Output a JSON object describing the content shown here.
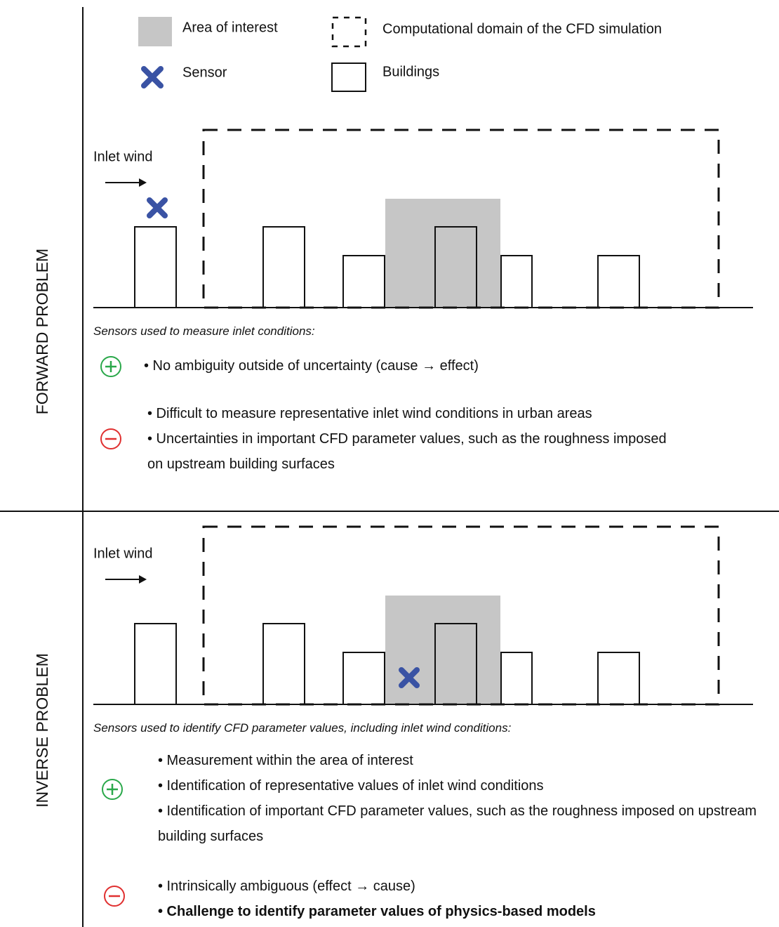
{
  "legend": {
    "area_of_interest": "Area of interest",
    "computational_domain": "Computational domain of the CFD simulation",
    "sensor": "Sensor",
    "buildings": "Buildings"
  },
  "panels": [
    {
      "label": "FORWARD PROBLEM",
      "inlet_wind": "Inlet wind",
      "caption": "Sensors used to measure inlet conditions:",
      "advantages": [
        "• No ambiguity outside of uncertainty (cause → effect)"
      ],
      "disadvantages": [
        "• Difficult to measure representative inlet wind conditions in urban areas",
        "• Uncertainties in important CFD parameter values, such as the roughness imposed on upstream building surfaces"
      ]
    },
    {
      "label": "INVERSE PROBLEM",
      "inlet_wind": "Inlet wind",
      "caption": "Sensors used to identify CFD parameter values, including inlet wind conditions:",
      "advantages": [
        "• Measurement within the area of interest",
        "• Identification of representative values of inlet wind conditions",
        "• Identification of important CFD parameter values, such as the roughness imposed on upstream building surfaces"
      ],
      "disadvantages": [
        "• Intrinsically ambiguous (effect → cause)",
        "• Challenge to identify parameter values of physics-based models"
      ]
    }
  ]
}
